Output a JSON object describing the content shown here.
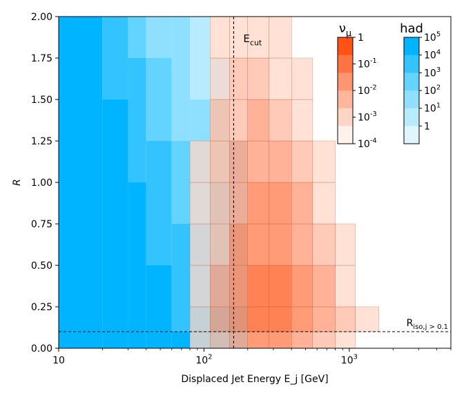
{
  "chart_data": {
    "type": "heatmap",
    "xlabel": "Displaced Jet Energy E_j [GeV]",
    "ylabel": "R",
    "xscale": "log",
    "xlim": [
      10,
      5000
    ],
    "ylim": [
      0,
      2.0
    ],
    "x_ticks": [
      {
        "value": 10,
        "label": "10"
      },
      {
        "value": 100,
        "label": "10^2"
      },
      {
        "value": 1000,
        "label": "10^3"
      }
    ],
    "y_ticks": [
      {
        "value": 0.0,
        "label": "0.00"
      },
      {
        "value": 0.25,
        "label": "0.25"
      },
      {
        "value": 0.5,
        "label": "0.50"
      },
      {
        "value": 0.75,
        "label": "0.75"
      },
      {
        "value": 1.0,
        "label": "1.00"
      },
      {
        "value": 1.25,
        "label": "1.25"
      },
      {
        "value": 1.5,
        "label": "1.50"
      },
      {
        "value": 1.75,
        "label": "1.75"
      },
      {
        "value": 2.0,
        "label": "2.00"
      }
    ],
    "cut_lines": [
      {
        "orientation": "vertical",
        "value": 160,
        "label": "E_cut"
      },
      {
        "orientation": "horizontal",
        "value": 0.1,
        "label": "R_iso,j > 0.1"
      }
    ],
    "series": [
      {
        "name": "had",
        "color": "#00b4ff",
        "color_levels": [
          "#e0f6ff",
          "#b9ebff",
          "#8fe0ff",
          "#63d3ff",
          "#33c4ff",
          "#00b4ff"
        ],
        "colorbar_ticks": [
          "10^5",
          "10^4",
          "10^3",
          "10^2",
          "10^1",
          "1"
        ],
        "x_bin_edges": [
          10,
          20,
          30,
          40,
          60,
          80,
          110,
          150,
          200
        ],
        "y_bin_edges": [
          0,
          0.1,
          0.25,
          0.5,
          0.75,
          1.0,
          1.25,
          1.5,
          1.75,
          2.0
        ],
        "level_rows": [
          [
            5,
            5,
            5,
            5,
            5,
            4,
            3,
            2
          ],
          [
            5,
            5,
            5,
            5,
            4,
            4,
            3,
            2
          ],
          [
            5,
            5,
            5,
            5,
            4,
            3,
            2,
            1
          ],
          [
            5,
            5,
            5,
            4,
            4,
            3,
            2,
            1
          ],
          [
            5,
            5,
            5,
            4,
            3,
            2,
            2,
            1
          ],
          [
            5,
            5,
            4,
            4,
            3,
            2,
            1,
            1
          ],
          [
            5,
            5,
            4,
            3,
            2,
            2,
            1,
            0
          ],
          [
            5,
            4,
            4,
            3,
            2,
            1,
            1,
            0
          ],
          [
            5,
            4,
            3,
            2,
            2,
            1,
            0,
            0
          ]
        ]
      },
      {
        "name": "ν_μ",
        "color": "#ff5a14",
        "color_levels": [
          "#fff1ec",
          "#ffd6c6",
          "#ffb69b",
          "#ff9470",
          "#ff7442",
          "#ff5214"
        ],
        "colorbar_ticks": [
          "1",
          "10^-1",
          "10^-2",
          "10^-3",
          "10^-4"
        ],
        "x_bin_edges": [
          80,
          110,
          150,
          200,
          280,
          400,
          560,
          800,
          1100,
          1600
        ],
        "y_bin_edges": [
          0,
          0.1,
          0.25,
          0.5,
          0.75,
          1.0,
          1.25,
          1.5,
          1.75,
          2.0
        ],
        "level_rows": [
          [
            1,
            2,
            3,
            4,
            4,
            3,
            2,
            1,
            0
          ],
          [
            1,
            3,
            4,
            5,
            5,
            4,
            3,
            2,
            1
          ],
          [
            1,
            3,
            4,
            5,
            5,
            4,
            3,
            1,
            0
          ],
          [
            1,
            2,
            4,
            4,
            4,
            3,
            2,
            1,
            0
          ],
          [
            1,
            2,
            3,
            4,
            4,
            3,
            1,
            0,
            0
          ],
          [
            1,
            2,
            3,
            3,
            3,
            2,
            1,
            0,
            0
          ],
          [
            0,
            2,
            2,
            3,
            2,
            1,
            0,
            0,
            0
          ],
          [
            0,
            1,
            2,
            2,
            1,
            1,
            0,
            0,
            0
          ],
          [
            0,
            1,
            1,
            1,
            1,
            0,
            0,
            0,
            0
          ]
        ]
      }
    ]
  }
}
